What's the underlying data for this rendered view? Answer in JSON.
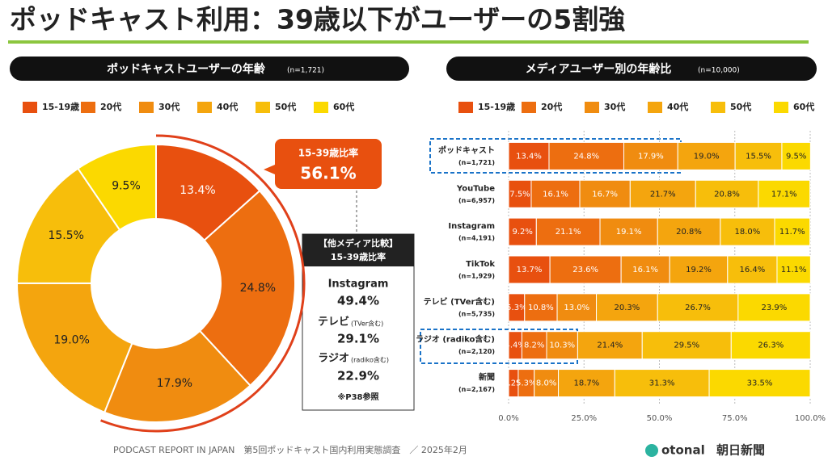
{
  "title": "ポッドキャスト利用：39歳以下がユーザーの5割強",
  "footer": "PODCAST REPORT IN JAPAN　第5回ポッドキャスト国内利用実態調査　／ 2025年2月",
  "logos": [
    "otonal",
    "朝日新聞"
  ],
  "chart_data": [
    {
      "type": "donut",
      "title": "ポッドキャストユーザーの年齢",
      "subtitle": "(n=1,721)",
      "categories": [
        "15-19歳",
        "20代",
        "30代",
        "40代",
        "50代",
        "60代"
      ],
      "values": [
        13.4,
        24.8,
        17.9,
        19.0,
        15.5,
        9.5
      ],
      "value_labels": [
        "13.4%",
        "24.8%",
        "17.9%",
        "19.0%",
        "15.5%",
        "9.5%"
      ],
      "colors": [
        "#e8500f",
        "#ed6e10",
        "#f08c10",
        "#f4a50e",
        "#f7be0b",
        "#fbd900"
      ],
      "callout": {
        "label": "15-39歳比率",
        "value": 56.1,
        "value_label": "56.1%"
      },
      "comparison": {
        "heading": "【他メディア比較】",
        "subheading": "15-39歳比率",
        "items": [
          {
            "name": "Instagram",
            "value": 49.4,
            "value_label": "49.4%"
          },
          {
            "name": "テレビ",
            "note": "(TVer含む)",
            "value": 29.1,
            "value_label": "29.1%"
          },
          {
            "name": "ラジオ",
            "note": "(radiko含む)",
            "value": 22.9,
            "value_label": "22.9%"
          }
        ],
        "footnote": "※P38参照"
      }
    },
    {
      "type": "stacked-bar",
      "orientation": "horizontal",
      "title": "メディアユーザー別の年齢比",
      "subtitle": "(n=10,000)",
      "categories": [
        "ポッドキャスト",
        "YouTube",
        "Instagram",
        "TikTok",
        "テレビ (TVer含む)",
        "ラジオ (radiko含む)",
        "新聞"
      ],
      "sample_sizes": [
        "(n=1,721)",
        "(n=6,957)",
        "(n=4,191)",
        "(n=1,929)",
        "(n=5,735)",
        "(n=2,120)",
        "(n=2,167)"
      ],
      "series": [
        {
          "name": "15-19歳",
          "color": "#e8500f",
          "values": [
            13.4,
            7.5,
            9.2,
            13.7,
            5.3,
            4.4,
            3.2
          ],
          "value_labels": [
            "13.4%",
            "7.5%",
            "9.2%",
            "13.7%",
            "5.3%",
            "4.4%",
            "3.2%"
          ]
        },
        {
          "name": "20代",
          "color": "#ed6e10",
          "values": [
            24.8,
            16.1,
            21.1,
            23.6,
            10.8,
            8.2,
            5.3
          ],
          "value_labels": [
            "24.8%",
            "16.1%",
            "21.1%",
            "23.6%",
            "10.8%",
            "8.2%",
            "5.3%"
          ]
        },
        {
          "name": "30代",
          "color": "#f08c10",
          "values": [
            17.9,
            16.7,
            19.1,
            16.1,
            13.0,
            10.3,
            8.0
          ],
          "value_labels": [
            "17.9%",
            "16.7%",
            "19.1%",
            "16.1%",
            "13.0%",
            "10.3%",
            "8.0%"
          ]
        },
        {
          "name": "40代",
          "color": "#f4a50e",
          "values": [
            19.0,
            21.7,
            20.8,
            19.2,
            20.3,
            21.4,
            18.7
          ],
          "value_labels": [
            "19.0%",
            "21.7%",
            "20.8%",
            "19.2%",
            "20.3%",
            "21.4%",
            "18.7%"
          ]
        },
        {
          "name": "50代",
          "color": "#f7be0b",
          "values": [
            15.5,
            20.8,
            18.0,
            16.4,
            26.7,
            29.5,
            31.3
          ],
          "value_labels": [
            "15.5%",
            "20.8%",
            "18.0%",
            "16.4%",
            "26.7%",
            "29.5%",
            "31.3%"
          ]
        },
        {
          "name": "60代",
          "color": "#fbd900",
          "values": [
            9.5,
            17.1,
            11.7,
            11.1,
            23.9,
            26.3,
            33.5
          ],
          "value_labels": [
            "9.5%",
            "17.1%",
            "11.7%",
            "11.1%",
            "23.9%",
            "26.3%",
            "33.5%"
          ]
        }
      ],
      "xlim": [
        0,
        100
      ],
      "xticks": [
        {
          "value": 0,
          "label": "0.0%"
        },
        {
          "value": 25,
          "label": "25.0%"
        },
        {
          "value": 50,
          "label": "50.0%"
        },
        {
          "value": 75,
          "label": "75.0%"
        },
        {
          "value": 100,
          "label": "100.0%"
        }
      ],
      "grid": true
    }
  ]
}
